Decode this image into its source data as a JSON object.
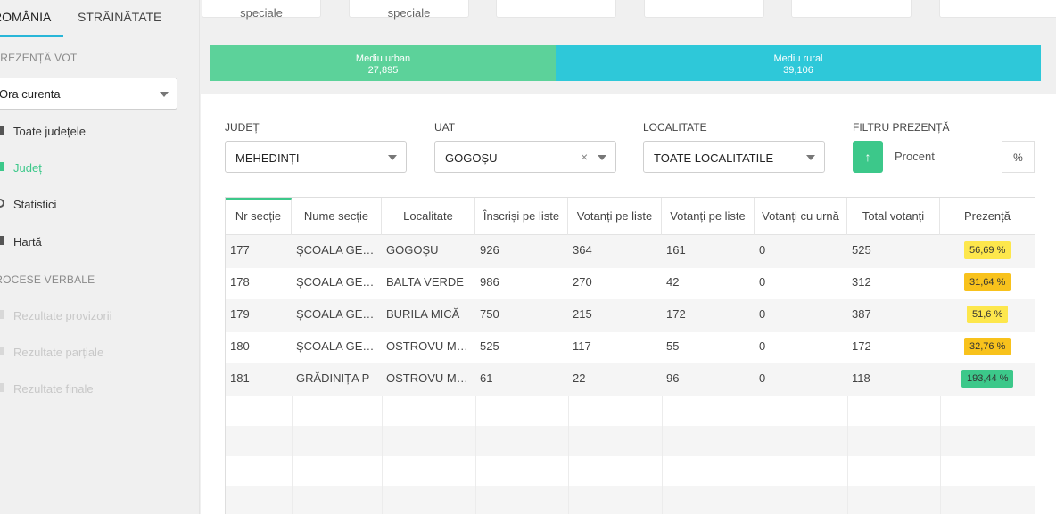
{
  "sidebar": {
    "tabs": [
      "ROMÂNIA",
      "STRĂINĂTATE"
    ],
    "presence_title": "PREZENȚĂ VOT",
    "time_select": "Ora curenta",
    "nav": [
      {
        "label": "Toate județele",
        "icon": "list-icon"
      },
      {
        "label": "Județ",
        "icon": "pin-icon"
      },
      {
        "label": "Statistici",
        "icon": "search-icon"
      },
      {
        "label": "Hartă",
        "icon": "map-icon"
      }
    ],
    "reports_title": "PROCESE VERBALE",
    "reports": [
      {
        "label": "Rezultate provizorii"
      },
      {
        "label": "Rezultate parțiale"
      },
      {
        "label": "Rezultate finale"
      }
    ]
  },
  "top_cards": [
    "speciale",
    "speciale"
  ],
  "env": {
    "urban": {
      "label": "Mediu urban",
      "value": "27,895",
      "color": "#5cd29a"
    },
    "rural": {
      "label": "Mediu rural",
      "value": "39,106",
      "color": "#2ec8d9"
    }
  },
  "filters": {
    "judet_label": "JUDEȚ",
    "judet_value": "MEHEDINȚI",
    "uat_label": "UAT",
    "uat_value": "GOGOȘU",
    "localitate_label": "LOCALITATE",
    "localitate_value": "TOATE LOCALITATILE",
    "presence_label": "FILTRU PREZENȚĂ",
    "presence_placeholder": "Procent",
    "presence_unit": "%",
    "sort_icon": "↑"
  },
  "table": {
    "headers": [
      "Nr secție",
      "Nume secție",
      "Localitate",
      "Înscriși pe liste",
      "Votanți pe liste",
      "Votanți pe liste",
      "Votanți cu urnă",
      "Total votanți",
      "Prezență"
    ],
    "rows": [
      [
        "177",
        "ȘCOALA GENERALĂ",
        "GOGOȘU",
        "926",
        "364",
        "161",
        "0",
        "525",
        "56,69 %"
      ],
      [
        "178",
        "ȘCOALA GENERALĂ",
        "BALTA VERDE",
        "986",
        "270",
        "42",
        "0",
        "312",
        "31,64 %"
      ],
      [
        "179",
        "ȘCOALA GENERALĂ",
        "BURILA MICĂ",
        "750",
        "215",
        "172",
        "0",
        "387",
        "51,6 %"
      ],
      [
        "180",
        "ȘCOALA GENERALĂ",
        "OSTROVU MARE",
        "525",
        "117",
        "55",
        "0",
        "172",
        "32,76 %"
      ],
      [
        "181",
        "GRĂDINIȚA P",
        "OSTROVU MARE",
        "61",
        "22",
        "96",
        "0",
        "118",
        "193,44 %"
      ]
    ],
    "badge_colors": [
      "#fde74c",
      "#f8c21c",
      "#fde74c",
      "#f8c21c",
      "#3cc88a"
    ]
  }
}
